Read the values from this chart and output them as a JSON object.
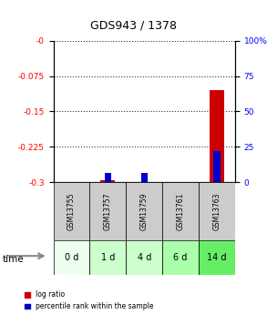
{
  "title": "GDS943 / 1378",
  "samples": [
    "GSM13755",
    "GSM13757",
    "GSM13759",
    "GSM13761",
    "GSM13763"
  ],
  "time_labels": [
    "0 d",
    "1 d",
    "4 d",
    "6 d",
    "14 d"
  ],
  "log_ratio": [
    0.0,
    -0.295,
    -0.299,
    0.0,
    -0.105
  ],
  "percentile_rank_pct": [
    0.0,
    6.5,
    6.5,
    0.0,
    22.0
  ],
  "ylim_left": [
    -0.3,
    0.0
  ],
  "ylim_right": [
    0,
    100
  ],
  "yticks_left": [
    0.0,
    -0.075,
    -0.15,
    -0.225,
    -0.3
  ],
  "ytick_labels_left": [
    "-0",
    "-0.075",
    "-0.15",
    "-0.225",
    "-0.3"
  ],
  "yticks_right": [
    0,
    25,
    50,
    75,
    100
  ],
  "ytick_labels_right": [
    "0",
    "25",
    "50",
    "75",
    "100%"
  ],
  "bar_color_red": "#cc0000",
  "bar_color_blue": "#0000cc",
  "sample_bg_color": "#cccccc",
  "time_green_shades": [
    "#eeffee",
    "#ccffcc",
    "#ccffcc",
    "#aaffaa",
    "#66ee66"
  ],
  "grid_linestyle": "dotted"
}
